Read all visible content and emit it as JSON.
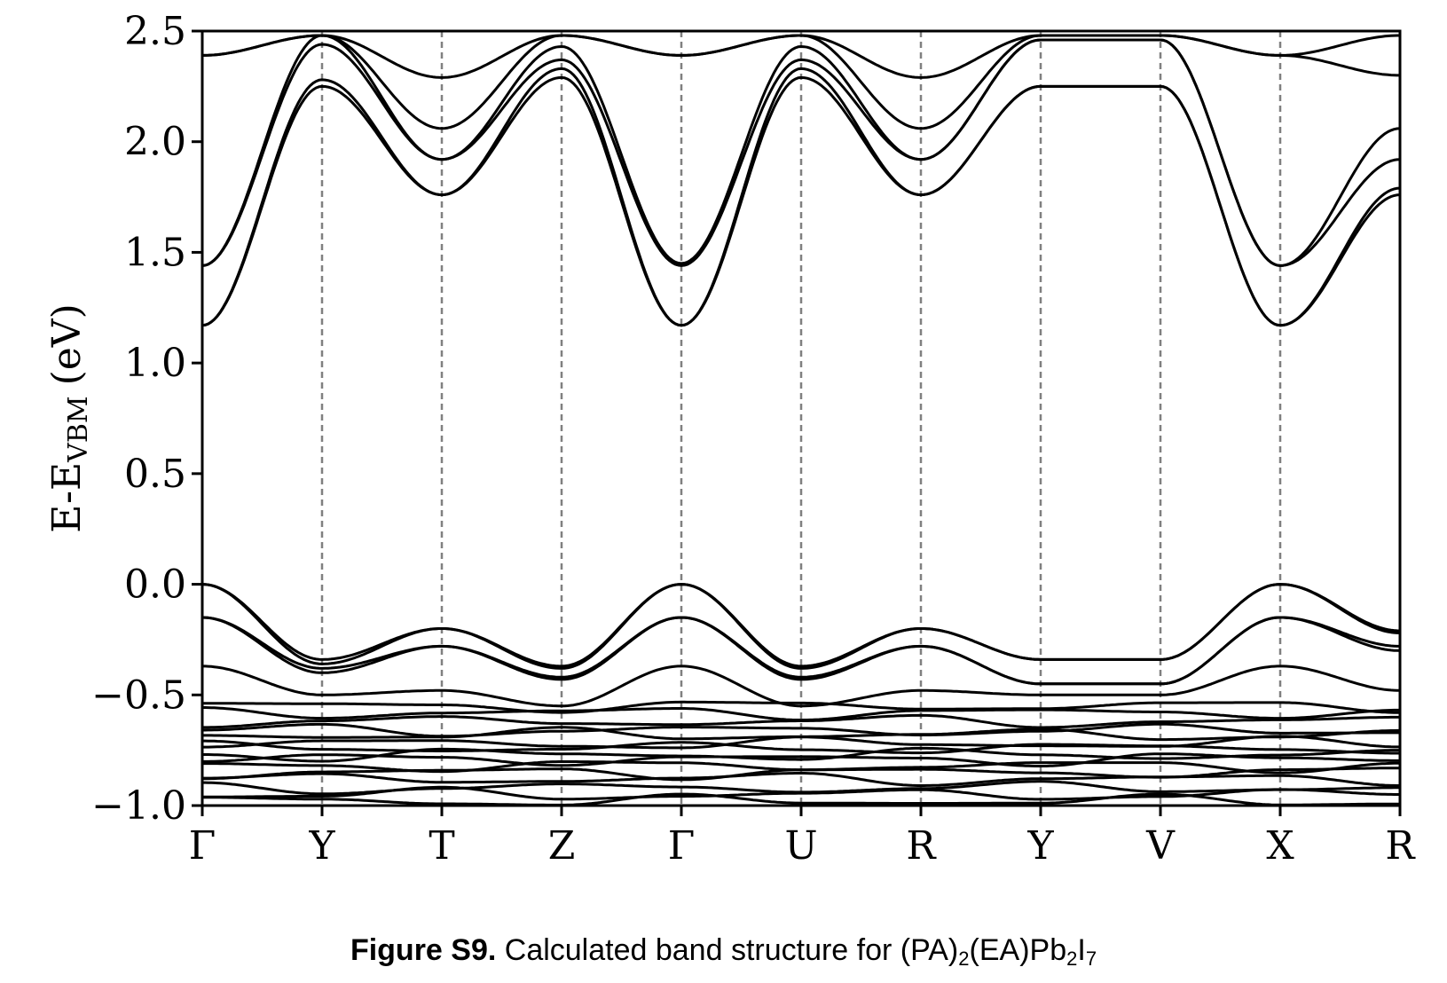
{
  "chart_data": {
    "type": "line",
    "title": "",
    "xlabel": "",
    "ylabel": "E-E",
    "ylabel_subscript": "VBM",
    "ylabel_unit": "(eV)",
    "ylim": [
      -1.0,
      2.5
    ],
    "yticks": [
      2.5,
      2.0,
      1.5,
      1.0,
      0.5,
      0.0,
      -0.5,
      -1.0
    ],
    "ytick_labels": [
      "2.5",
      "2.0",
      "1.5",
      "1.0",
      "0.5",
      "0.0",
      "−0.5",
      "−1.0"
    ],
    "k_points": [
      "Γ",
      "Y",
      "T",
      "Z",
      "Γ",
      "U",
      "R",
      "Y",
      "V",
      "X",
      "R"
    ],
    "k_positions": [
      0,
      1,
      2,
      3,
      4,
      5,
      6,
      7,
      8,
      9,
      10
    ],
    "grid": "vertical dashed lines at high-symmetry points",
    "conduction_bands_at_k": [
      [
        1.17,
        1.17,
        1.44,
        1.44,
        2.39,
        2.39
      ],
      [
        2.25,
        2.28,
        2.44,
        2.48,
        2.48,
        2.48
      ],
      [
        1.76,
        1.76,
        1.92,
        1.92,
        2.06,
        2.29
      ],
      [
        2.29,
        2.33,
        2.37,
        2.43,
        2.48,
        2.48
      ],
      [
        1.17,
        1.17,
        1.44,
        1.45,
        2.39,
        2.39
      ],
      [
        2.29,
        2.33,
        2.37,
        2.43,
        2.48,
        2.48
      ],
      [
        1.76,
        1.76,
        1.92,
        1.92,
        2.06,
        2.29
      ],
      [
        2.25,
        2.25,
        2.46,
        2.46,
        2.48,
        2.48
      ],
      [
        2.25,
        2.25,
        2.46,
        2.46,
        2.48,
        2.48
      ],
      [
        1.17,
        1.17,
        1.44,
        1.44,
        2.39,
        2.39
      ],
      [
        1.76,
        1.79,
        1.92,
        2.06,
        2.3,
        2.48
      ]
    ],
    "valence_bands_at_k": [
      [
        0.0,
        0.0,
        -0.15,
        -0.15,
        -0.37
      ],
      [
        -0.34,
        -0.36,
        -0.38,
        -0.4,
        -0.5
      ],
      [
        -0.2,
        -0.2,
        -0.28,
        -0.28,
        -0.48
      ],
      [
        -0.37,
        -0.38,
        -0.42,
        -0.43,
        -0.55
      ],
      [
        0.0,
        0.0,
        -0.15,
        -0.15,
        -0.37
      ],
      [
        -0.37,
        -0.38,
        -0.42,
        -0.43,
        -0.55
      ],
      [
        -0.2,
        -0.2,
        -0.28,
        -0.28,
        -0.48
      ],
      [
        -0.34,
        -0.34,
        -0.45,
        -0.45,
        -0.5
      ],
      [
        -0.34,
        -0.34,
        -0.45,
        -0.45,
        -0.5
      ],
      [
        0.0,
        0.0,
        -0.15,
        -0.15,
        -0.37
      ],
      [
        -0.21,
        -0.22,
        -0.28,
        -0.3,
        -0.48
      ]
    ],
    "deep_valence_levels": [
      -0.55,
      -0.58,
      -0.62,
      -0.66,
      -0.68,
      -0.72,
      -0.74,
      -0.77,
      -0.79,
      -0.82,
      -0.85,
      -0.88,
      -0.92,
      -0.95,
      -0.98
    ]
  },
  "caption": {
    "label": "Figure S9.",
    "text": " Calculated band structure for (PA)",
    "sub1": "2",
    "text2": "(EA)Pb",
    "sub2": "2",
    "text3": "I",
    "sub3": "7"
  }
}
